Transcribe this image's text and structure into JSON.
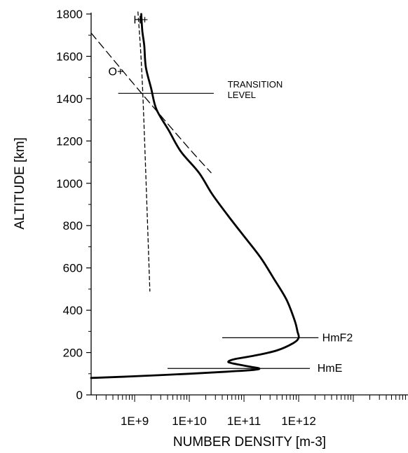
{
  "chart_data": {
    "type": "line",
    "title": "",
    "xlabel": "NUMBER DENSITY [m-3]",
    "ylabel": "ALTITUDE [km]",
    "x_scale": "log",
    "xlim": [
      160000000.0,
      100000000000000.0
    ],
    "ylim": [
      0,
      1800
    ],
    "x_ticks": [
      {
        "value": 1000000000.0,
        "label": "1E+9"
      },
      {
        "value": 10000000000.0,
        "label": "1E+10"
      },
      {
        "value": 100000000000.0,
        "label": "1E+11"
      },
      {
        "value": 1000000000000.0,
        "label": "1E+12"
      }
    ],
    "y_ticks": [
      0,
      200,
      400,
      600,
      800,
      1000,
      1200,
      1400,
      1600,
      1800
    ],
    "grid": false,
    "legend": "none",
    "series": [
      {
        "style": "solid-thick",
        "points": [
          [
            160000000.0,
            80
          ],
          [
            1000000000.0,
            88
          ],
          [
            10000000000.0,
            100
          ],
          [
            50000000000.0,
            110
          ],
          [
            150000000000.0,
            118
          ],
          [
            190000000000.0,
            125
          ],
          [
            130000000000.0,
            133
          ],
          [
            60000000000.0,
            150
          ],
          [
            52000000000.0,
            158
          ],
          [
            70000000000.0,
            170
          ],
          [
            150000000000.0,
            185
          ],
          [
            400000000000.0,
            210
          ],
          [
            800000000000.0,
            245
          ],
          [
            1000000000000.0,
            270
          ],
          [
            950000000000.0,
            300
          ],
          [
            850000000000.0,
            350
          ],
          [
            600000000000.0,
            450
          ],
          [
            350000000000.0,
            550
          ],
          [
            200000000000.0,
            650
          ],
          [
            100000000000.0,
            750
          ],
          [
            50000000000.0,
            850
          ],
          [
            26000000000.0,
            950
          ],
          [
            15000000000.0,
            1050
          ],
          [
            7000000000.0,
            1150
          ],
          [
            4200000000.0,
            1250
          ],
          [
            2500000000.0,
            1350
          ],
          [
            2000000000.0,
            1450
          ],
          [
            1600000000.0,
            1550
          ],
          [
            1500000000.0,
            1650
          ],
          [
            1380000000.0,
            1720
          ],
          [
            1320000000.0,
            1800
          ]
        ]
      },
      {
        "name": "O+",
        "style": "long-dash",
        "points": [
          [
            160000000.0,
            1710
          ],
          [
            1200000000.0,
            1440
          ],
          [
            9500000000.0,
            1170
          ],
          [
            25000000000.0,
            1050
          ]
        ]
      },
      {
        "name": "H+",
        "style": "short-dash",
        "points": [
          [
            1150000000.0,
            1810
          ],
          [
            1400000000.0,
            1440
          ],
          [
            1900000000.0,
            490
          ]
        ]
      }
    ],
    "annotations": [
      {
        "text": "H+",
        "x": 950000000.0,
        "y": 1755
      },
      {
        "text": "O+",
        "x": 330000000.0,
        "y": 1510
      },
      {
        "text": "TRANSITION",
        "x": 50000000000.0,
        "y": 1453,
        "line": [
          [
            500000000.0,
            1425
          ],
          [
            28000000000.0,
            1425
          ]
        ]
      },
      {
        "text": "LEVEL",
        "x": 50000000000.0,
        "y": 1403
      },
      {
        "text": "HmF2",
        "x": 2700000000000.0,
        "y": 253,
        "line": [
          [
            40000000000.0,
            270
          ],
          [
            2300000000000.0,
            270
          ]
        ]
      },
      {
        "text": "HmE",
        "x": 2200000000000.0,
        "y": 110,
        "line": [
          [
            4000000000.0,
            125
          ],
          [
            1600000000000.0,
            125
          ]
        ]
      }
    ]
  }
}
